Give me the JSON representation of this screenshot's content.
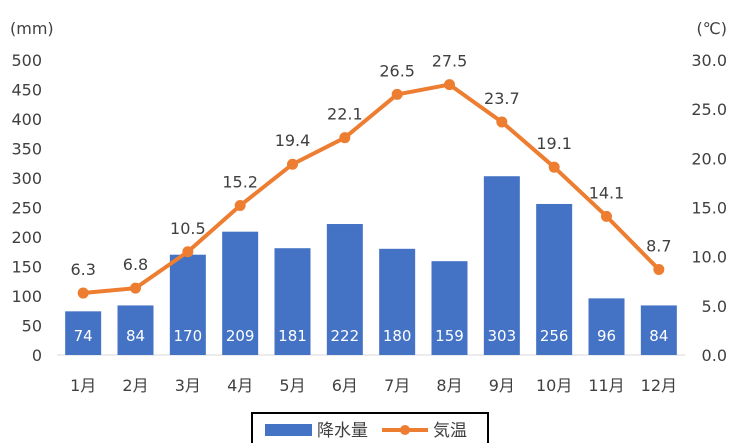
{
  "chart_data": {
    "type": "bar+line",
    "categories": [
      "1月",
      "2月",
      "3月",
      "4月",
      "5月",
      "6月",
      "7月",
      "8月",
      "9月",
      "10月",
      "11月",
      "12月"
    ],
    "series": [
      {
        "name": "降水量",
        "type": "bar",
        "axis": "left",
        "color": "#4472C4",
        "values": [
          74,
          84,
          170,
          209,
          181,
          222,
          180,
          159,
          303,
          256,
          96,
          84
        ]
      },
      {
        "name": "気温",
        "type": "line",
        "axis": "right",
        "color": "#ED7D31",
        "values": [
          6.3,
          6.8,
          10.5,
          15.2,
          19.4,
          22.1,
          26.5,
          27.5,
          23.7,
          19.1,
          14.1,
          8.7
        ]
      }
    ],
    "y_left": {
      "unit_label": "(mm)",
      "range": [
        0,
        500
      ],
      "ticks": [
        "0",
        "50",
        "100",
        "150",
        "200",
        "250",
        "300",
        "350",
        "400",
        "450",
        "500"
      ]
    },
    "y_right": {
      "unit_label": "(℃)",
      "range": [
        0,
        30
      ],
      "ticks": [
        "0.0",
        "5.0",
        "10.0",
        "15.0",
        "20.0",
        "25.0",
        "30.0"
      ]
    },
    "legend_position": "bottom",
    "grid": false,
    "bar_label_color": "#FFFFFF",
    "line_label_color": "#404040"
  }
}
